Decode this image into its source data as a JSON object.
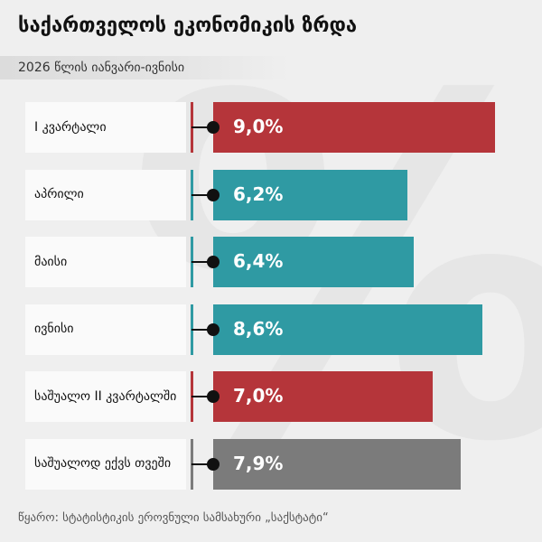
{
  "chart_data": {
    "type": "bar",
    "title": "საქართველოს ეკონომიკის ზრდა",
    "subtitle": "2026 წლის იანვარი-ივნისი",
    "categories": [
      "I  კვარტალი",
      "აპრილი",
      "მაისი",
      "ივნისი",
      "საშუალო II კვარტალში",
      "საშუალოდ ექვს თვეში"
    ],
    "values": [
      9.0,
      6.2,
      6.4,
      8.6,
      7.0,
      7.9
    ],
    "value_labels": [
      "9,0%",
      "6,2%",
      "6,4%",
      "8,6%",
      "7,0%",
      "7,9%"
    ],
    "colors": [
      "#b5353a",
      "#2f9aa3",
      "#2f9aa3",
      "#2f9aa3",
      "#b5353a",
      "#7b7b7b"
    ],
    "source": "წყარო: სტატისტიკის ეროვნული სამსახური „საქსტატი“"
  }
}
